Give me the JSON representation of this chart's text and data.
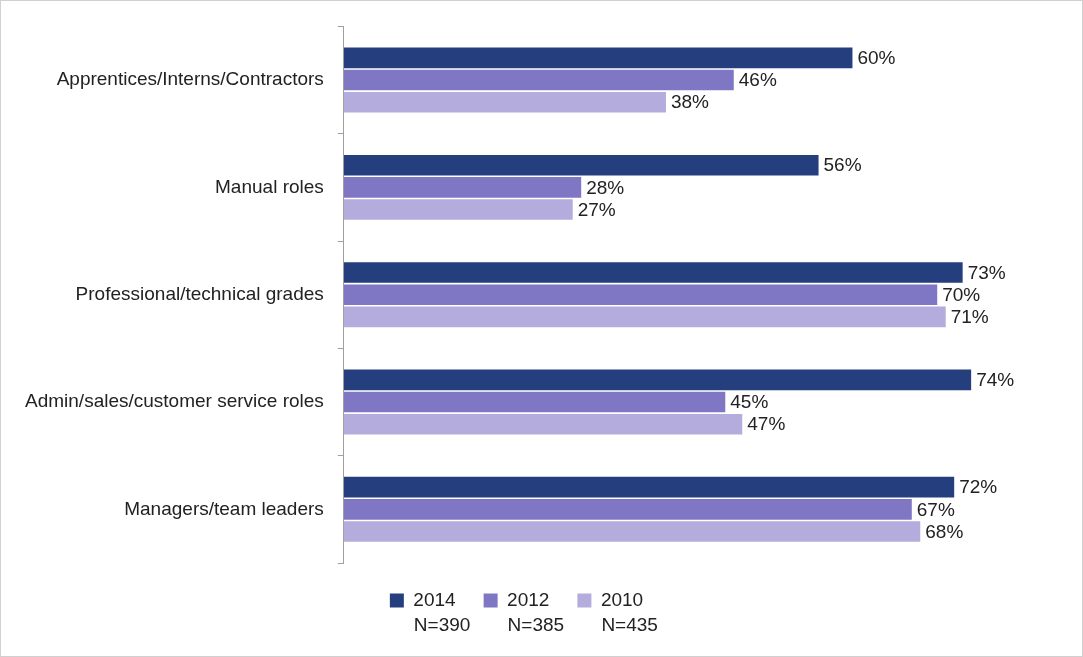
{
  "chart_data": {
    "type": "bar",
    "orientation": "horizontal",
    "categories": [
      "Apprentices/Interns/Contractors",
      "Manual roles",
      "Professional/technical grades",
      "Admin/sales/customer service roles",
      "Managers/team leaders"
    ],
    "series": [
      {
        "name": "2014",
        "color": "#253e7e",
        "values": [
          60,
          56,
          73,
          74,
          72
        ],
        "value_labels": [
          "60%",
          "56%",
          "73%",
          "74%",
          "72%"
        ]
      },
      {
        "name": "2012",
        "color": "#8077c4",
        "values": [
          46,
          28,
          70,
          45,
          67
        ],
        "value_labels": [
          "46%",
          "28%",
          "70%",
          "45%",
          "67%"
        ]
      },
      {
        "name": "2010",
        "color": "#b3acdc",
        "values": [
          38,
          27,
          71,
          47,
          68
        ],
        "value_labels": [
          "38%",
          "27%",
          "71%",
          "47%",
          "68%"
        ]
      }
    ],
    "annotations": [
      "N=390",
      "N=385",
      "N=435"
    ],
    "legend": "bottom",
    "grid": false,
    "tick_labels": "y"
  }
}
